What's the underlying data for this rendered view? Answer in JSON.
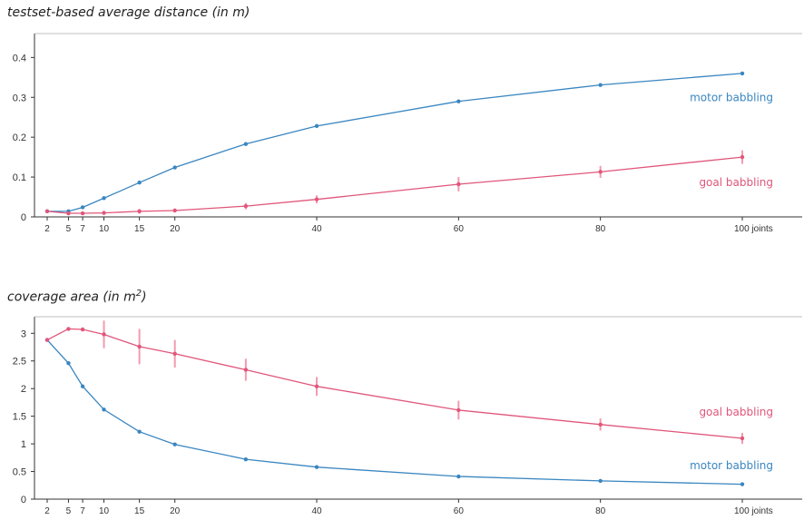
{
  "colors": {
    "motor": "#3a86c0",
    "goal": "#e0567a",
    "goal_err": "#f29bb0",
    "axis": "#333333"
  },
  "chart_data": [
    {
      "type": "line",
      "title": "testset-based average distance (in m)",
      "title_parts": [
        "testset-based average distance (in m)"
      ],
      "x": [
        2,
        5,
        7,
        10,
        15,
        20,
        30,
        40,
        60,
        80,
        100
      ],
      "x_tick_labels": [
        "2",
        "5",
        "7",
        "10",
        "15",
        "20",
        "40",
        "60",
        "80",
        "100 joints"
      ],
      "x_tick_values": [
        2,
        5,
        7,
        10,
        15,
        20,
        40,
        60,
        80,
        100
      ],
      "xlim": [
        0,
        108
      ],
      "ylim": [
        0,
        0.46
      ],
      "y_ticks": [
        0,
        0.1,
        0.2,
        0.3,
        0.4
      ],
      "y_tick_labels": [
        "0",
        "0.1",
        "0.2",
        "0.3",
        "0.4"
      ],
      "grid": false,
      "series": [
        {
          "name": "motor babbling",
          "color_key": "motor",
          "values": [
            0.014,
            0.014,
            0.024,
            0.047,
            0.086,
            0.124,
            0.183,
            0.228,
            0.29,
            0.331,
            0.36
          ],
          "err": [
            0,
            0,
            0,
            0,
            0,
            0,
            0,
            0,
            0,
            0,
            0.004
          ]
        },
        {
          "name": "goal babbling",
          "color_key": "goal",
          "values": [
            0.014,
            0.009,
            0.009,
            0.01,
            0.014,
            0.016,
            0.027,
            0.044,
            0.082,
            0.113,
            0.15
          ],
          "err": [
            0.002,
            0.002,
            0.003,
            0.005,
            0.006,
            0.005,
            0.008,
            0.01,
            0.018,
            0.015,
            0.017
          ]
        }
      ]
    },
    {
      "type": "line",
      "title": "coverage area (in m²)",
      "title_parts": [
        "coverage area (in m",
        "2",
        ")"
      ],
      "x": [
        2,
        5,
        7,
        10,
        15,
        20,
        30,
        40,
        60,
        80,
        100
      ],
      "x_tick_labels": [
        "2",
        "5",
        "7",
        "10",
        "15",
        "20",
        "40",
        "60",
        "80",
        "100 joints"
      ],
      "x_tick_values": [
        2,
        5,
        7,
        10,
        15,
        20,
        40,
        60,
        80,
        100
      ],
      "xlim": [
        0,
        108
      ],
      "ylim": [
        0,
        3.3
      ],
      "y_ticks": [
        0,
        0.5,
        1,
        1.5,
        2,
        2.5,
        3
      ],
      "y_tick_labels": [
        "0",
        "0.5",
        "1",
        "1.5",
        "2",
        "2.5",
        "3"
      ],
      "grid": false,
      "series": [
        {
          "name": "motor babbling",
          "color_key": "motor",
          "values": [
            2.88,
            2.46,
            2.04,
            1.62,
            1.22,
            0.99,
            0.72,
            0.58,
            0.41,
            0.33,
            0.27
          ],
          "err": [
            0,
            0,
            0,
            0,
            0,
            0,
            0,
            0,
            0,
            0,
            0
          ]
        },
        {
          "name": "goal babbling",
          "color_key": "goal",
          "values": [
            2.88,
            3.08,
            3.07,
            2.98,
            2.76,
            2.63,
            2.34,
            2.04,
            1.61,
            1.35,
            1.1
          ],
          "err": [
            0,
            0,
            0,
            0.25,
            0.32,
            0.25,
            0.2,
            0.17,
            0.17,
            0.11,
            0.1
          ]
        }
      ]
    }
  ]
}
